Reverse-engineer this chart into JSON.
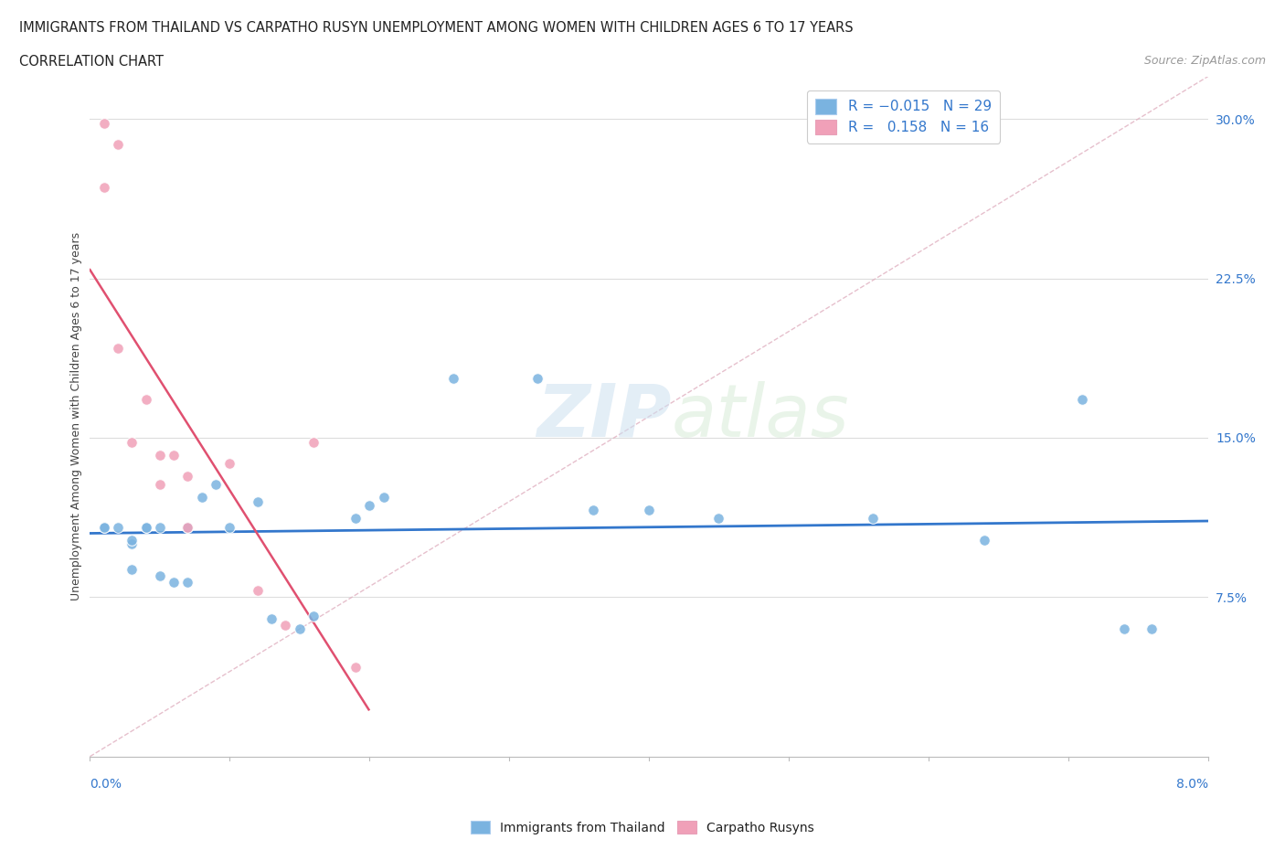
{
  "title_line1": "IMMIGRANTS FROM THAILAND VS CARPATHO RUSYN UNEMPLOYMENT AMONG WOMEN WITH CHILDREN AGES 6 TO 17 YEARS",
  "title_line2": "CORRELATION CHART",
  "source": "Source: ZipAtlas.com",
  "ylabel_label": "Unemployment Among Women with Children Ages 6 to 17 years",
  "thailand_color": "#7ab3e0",
  "carpatho_color": "#f0a0b8",
  "watermark": "ZIPatlas",
  "thailand_points": [
    [
      0.001,
      0.108
    ],
    [
      0.001,
      0.108
    ],
    [
      0.002,
      0.108
    ],
    [
      0.003,
      0.1
    ],
    [
      0.003,
      0.102
    ],
    [
      0.003,
      0.088
    ],
    [
      0.004,
      0.108
    ],
    [
      0.004,
      0.108
    ],
    [
      0.005,
      0.085
    ],
    [
      0.005,
      0.108
    ],
    [
      0.006,
      0.082
    ],
    [
      0.007,
      0.082
    ],
    [
      0.007,
      0.108
    ],
    [
      0.008,
      0.122
    ],
    [
      0.009,
      0.128
    ],
    [
      0.01,
      0.108
    ],
    [
      0.012,
      0.12
    ],
    [
      0.013,
      0.065
    ],
    [
      0.015,
      0.06
    ],
    [
      0.016,
      0.066
    ],
    [
      0.019,
      0.112
    ],
    [
      0.02,
      0.118
    ],
    [
      0.021,
      0.122
    ],
    [
      0.026,
      0.178
    ],
    [
      0.032,
      0.178
    ],
    [
      0.036,
      0.116
    ],
    [
      0.04,
      0.116
    ],
    [
      0.045,
      0.112
    ],
    [
      0.056,
      0.112
    ],
    [
      0.064,
      0.102
    ],
    [
      0.071,
      0.168
    ],
    [
      0.074,
      0.06
    ],
    [
      0.076,
      0.06
    ]
  ],
  "carpatho_points": [
    [
      0.001,
      0.298
    ],
    [
      0.001,
      0.268
    ],
    [
      0.002,
      0.288
    ],
    [
      0.002,
      0.192
    ],
    [
      0.003,
      0.148
    ],
    [
      0.004,
      0.168
    ],
    [
      0.005,
      0.142
    ],
    [
      0.005,
      0.128
    ],
    [
      0.006,
      0.142
    ],
    [
      0.007,
      0.132
    ],
    [
      0.007,
      0.108
    ],
    [
      0.01,
      0.138
    ],
    [
      0.012,
      0.078
    ],
    [
      0.014,
      0.062
    ],
    [
      0.016,
      0.148
    ],
    [
      0.019,
      0.042
    ]
  ],
  "xmin": 0.0,
  "xmax": 0.08,
  "ymin": 0.0,
  "ymax": 0.32,
  "ytick_vals": [
    0.075,
    0.15,
    0.225,
    0.3
  ],
  "ytick_labels": [
    "7.5%",
    "15.0%",
    "22.5%",
    "30.0%"
  ]
}
